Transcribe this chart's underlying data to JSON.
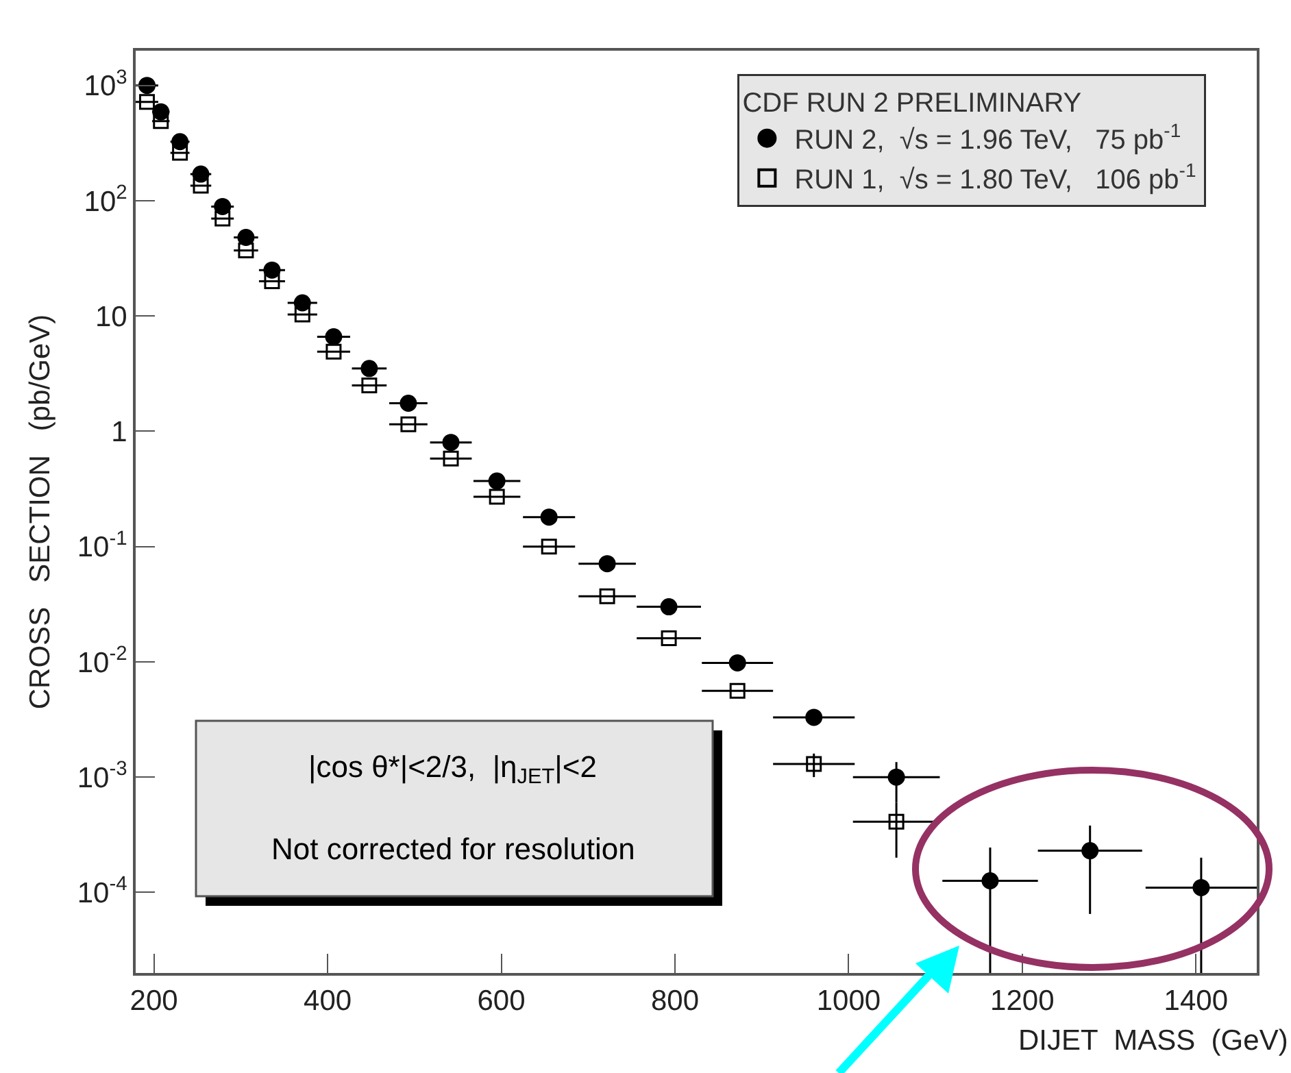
{
  "chart_data": {
    "type": "scatter",
    "xlabel": "DIJET  MASS  (GeV)",
    "ylabel": "CROSS   SECTION   (pb/GeV)",
    "legend_title": "CDF RUN 2 PRELIMINARY",
    "legend": "top right",
    "log": "y",
    "grid": false,
    "xlim": [
      179,
      1470
    ],
    "xticks": [
      200,
      400,
      600,
      800,
      1000,
      1200,
      1400
    ],
    "ylim": [
      2e-05,
      2000
    ],
    "yticks": [
      {
        "value": 0.0001,
        "label": "10$^{-4}$"
      },
      {
        "value": 0.001,
        "label": "10$^{-3}$"
      },
      {
        "value": 0.01,
        "label": "10$^{-2}$"
      },
      {
        "value": 0.1,
        "label": "10$^{-1}$"
      },
      1,
      10,
      {
        "value": 100,
        "label": "10$^{2}$"
      },
      {
        "value": 1000,
        "label": "10$^{3}$"
      }
    ],
    "annotations": [
      "|cos θ*|<2/3,  |η$_{JET}$|<2",
      "Not corrected for resolution"
    ],
    "series": [
      {
        "name": "RUN 2,  √s = 1.96 TeV,   75 pb$^{-1}$",
        "color": "#000000",
        "marker": "circle",
        "x": [
          192,
          208,
          230,
          254,
          279,
          306,
          336,
          371,
          407,
          448,
          493,
          542,
          595,
          655,
          722,
          793,
          872,
          960,
          1055,
          1163,
          1278,
          1406
        ],
        "values": [
          1000,
          590,
          325,
          170,
          89,
          48,
          25,
          13,
          6.6,
          3.5,
          1.75,
          0.8,
          0.37,
          0.18,
          0.071,
          0.03,
          0.0098,
          0.0033,
          0.001,
          0.000126,
          0.00023,
          0.00011
        ],
        "xerrors": [
          13,
          10,
          11,
          12,
          13,
          14,
          15,
          17,
          19,
          20,
          22,
          24,
          27,
          30,
          33,
          37,
          41,
          47,
          50,
          55,
          60,
          64
        ],
        "errors": [
          null,
          null,
          null,
          null,
          null,
          null,
          null,
          null,
          null,
          null,
          null,
          null,
          null,
          null,
          null,
          null,
          null,
          null,
          [
            0.0006,
            0.00135
          ],
          [
            2e-05,
            0.000245
          ],
          [
            6.5e-05,
            0.00038
          ],
          [
            2e-05,
            0.0002
          ]
        ]
      },
      {
        "name": "RUN 1,  √s = 1.80 TeV,   106 pb$^{-1}$",
        "color": "#000000",
        "marker": "square",
        "x": [
          192,
          208,
          230,
          254,
          279,
          306,
          336,
          371,
          407,
          448,
          493,
          542,
          595,
          655,
          722,
          793,
          872,
          960,
          1055
        ],
        "values": [
          720,
          490,
          260,
          135,
          70,
          37,
          20,
          10.3,
          4.9,
          2.5,
          1.15,
          0.58,
          0.27,
          0.1,
          0.037,
          0.016,
          0.0056,
          0.0013,
          0.00041
        ],
        "xerrors": [
          13,
          10,
          11,
          12,
          13,
          14,
          15,
          17,
          19,
          20,
          22,
          24,
          27,
          30,
          33,
          37,
          41,
          47,
          50
        ],
        "errors": [
          null,
          null,
          null,
          null,
          null,
          null,
          null,
          null,
          null,
          null,
          null,
          null,
          null,
          null,
          null,
          null,
          null,
          [
            0.001,
            0.0016
          ],
          [
            0.0002,
            0.0006
          ]
        ]
      }
    ]
  }
}
